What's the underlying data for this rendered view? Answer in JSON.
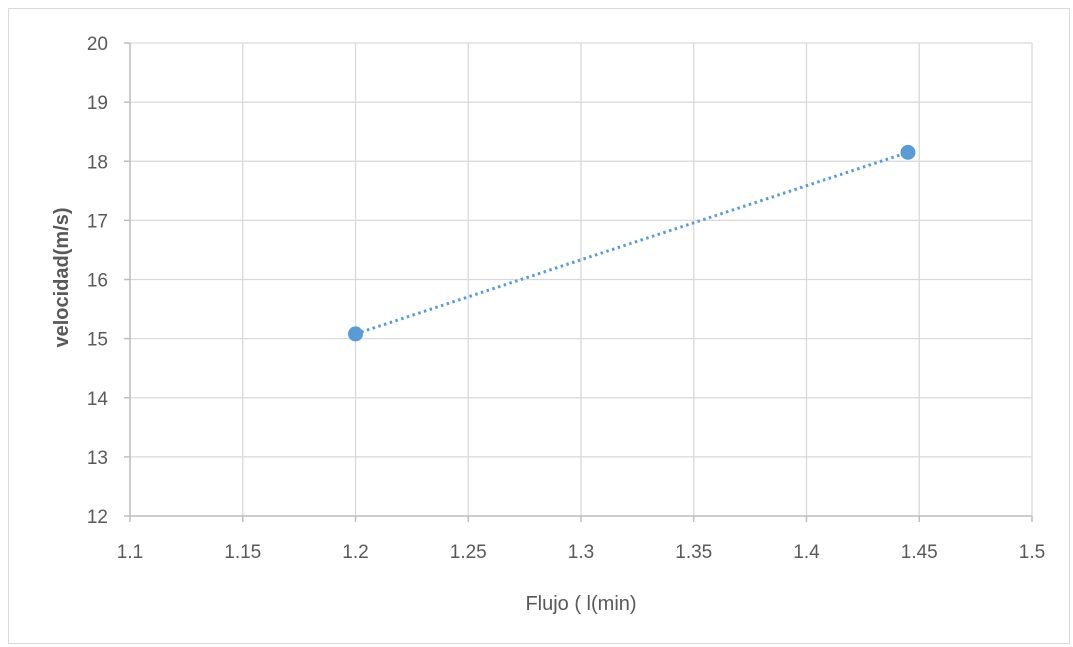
{
  "chart_data": {
    "type": "scatter",
    "title": "",
    "xlabel": "Flujo ( l(min)",
    "ylabel": "velocidad(m/s)",
    "xlim": [
      1.1,
      1.5
    ],
    "ylim": [
      12,
      20
    ],
    "x_ticks": [
      "1.1",
      "1.15",
      "1.2",
      "1.25",
      "1.3",
      "1.35",
      "1.4",
      "1.45",
      "1.5"
    ],
    "y_ticks": [
      "12",
      "13",
      "14",
      "15",
      "16",
      "17",
      "18",
      "19",
      "20"
    ],
    "grid": true,
    "legend": "none",
    "series": [
      {
        "x": [
          1.2,
          1.445
        ],
        "y": [
          15.08,
          18.15
        ],
        "color": "#5b9bd5",
        "line_style": "dotted"
      }
    ]
  }
}
